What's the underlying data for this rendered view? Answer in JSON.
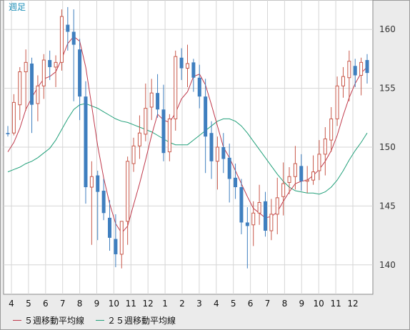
{
  "chart_data": {
    "type": "candlestick",
    "period_label": "週足",
    "ylim": [
      137.5,
      162.5
    ],
    "y_ticks": [
      140,
      145,
      150,
      155,
      160
    ],
    "x_tick_labels": [
      "4",
      "5",
      "6",
      "7",
      "8",
      "9",
      "10",
      "11",
      "12",
      "1",
      "2",
      "3",
      "4",
      "5",
      "6",
      "7",
      "8",
      "9",
      "10",
      "11",
      "12"
    ],
    "grid": true,
    "legend_position": "bottom-left",
    "colors": {
      "up": "#c8584a",
      "down": "#3f7fbf",
      "ma5": "#c0394b",
      "ma25": "#22a07a"
    },
    "series": [
      {
        "name": "５週移動平均線",
        "key": "ma5"
      },
      {
        "name": "２５週移動平均線",
        "key": "ma25"
      }
    ],
    "candles": [
      [
        151.2,
        151.8,
        150.9,
        151.1
      ],
      [
        151.2,
        154.5,
        151.0,
        153.8
      ],
      [
        153.6,
        156.8,
        152.3,
        156.4
      ],
      [
        156.4,
        158.3,
        153.1,
        157.2
      ],
      [
        157.1,
        157.6,
        151.2,
        153.6
      ],
      [
        153.7,
        156.1,
        152.2,
        155.2
      ],
      [
        155.2,
        157.9,
        154.1,
        157.4
      ],
      [
        157.4,
        158.2,
        155.7,
        156.8
      ],
      [
        156.8,
        157.8,
        155.1,
        157.2
      ],
      [
        157.2,
        161.7,
        156.5,
        161.1
      ],
      [
        160.4,
        161.9,
        158.2,
        159.8
      ],
      [
        159.8,
        161.7,
        153.9,
        158.7
      ],
      [
        158.3,
        159.2,
        152.3,
        154.3
      ],
      [
        154.3,
        155.6,
        145.2,
        146.6
      ],
      [
        146.6,
        148.8,
        141.7,
        147.5
      ],
      [
        147.6,
        148.0,
        142.1,
        146.2
      ],
      [
        146.3,
        147.3,
        143.8,
        144.4
      ],
      [
        144.0,
        145.5,
        141.2,
        142.3
      ],
      [
        142.2,
        144.3,
        139.8,
        140.9
      ],
      [
        140.9,
        143.7,
        139.7,
        143.7
      ],
      [
        143.7,
        149.2,
        141.7,
        148.8
      ],
      [
        148.6,
        150.8,
        147.9,
        150.1
      ],
      [
        150.1,
        152.7,
        149.0,
        151.2
      ],
      [
        151.1,
        155.4,
        150.5,
        153.3
      ],
      [
        153.4,
        155.8,
        152.3,
        154.6
      ],
      [
        154.6,
        156.2,
        152.5,
        153.2
      ],
      [
        153.2,
        155.3,
        148.8,
        149.5
      ],
      [
        149.6,
        152.8,
        148.8,
        152.4
      ],
      [
        152.4,
        158.2,
        151.4,
        157.7
      ],
      [
        157.6,
        158.4,
        155.7,
        156.7
      ],
      [
        156.7,
        158.7,
        155.1,
        157.1
      ],
      [
        157.2,
        157.5,
        154.7,
        155.9
      ],
      [
        155.9,
        157.0,
        153.3,
        154.3
      ],
      [
        154.3,
        155.8,
        147.8,
        150.9
      ],
      [
        151.2,
        152.2,
        147.3,
        148.8
      ],
      [
        148.8,
        150.9,
        146.4,
        150.0
      ],
      [
        150.0,
        151.2,
        147.8,
        149.0
      ],
      [
        149.1,
        150.3,
        145.3,
        147.3
      ],
      [
        147.4,
        148.6,
        145.6,
        146.6
      ],
      [
        146.6,
        147.3,
        142.6,
        143.6
      ],
      [
        143.6,
        144.9,
        139.7,
        143.3
      ],
      [
        143.4,
        145.4,
        141.6,
        144.4
      ],
      [
        144.4,
        146.8,
        143.4,
        145.3
      ],
      [
        145.4,
        146.2,
        142.4,
        142.9
      ],
      [
        142.9,
        145.6,
        142.1,
        144.3
      ],
      [
        144.3,
        147.4,
        142.6,
        145.7
      ],
      [
        145.8,
        148.7,
        144.2,
        146.9
      ],
      [
        147.0,
        148.3,
        146.0,
        147.5
      ],
      [
        147.5,
        150.1,
        146.4,
        148.6
      ],
      [
        148.4,
        149.4,
        146.3,
        147.1
      ],
      [
        147.1,
        148.4,
        146.1,
        147.2
      ],
      [
        147.2,
        149.3,
        146.8,
        147.9
      ],
      [
        148.0,
        150.6,
        147.2,
        149.4
      ],
      [
        149.4,
        151.7,
        147.6,
        150.7
      ],
      [
        150.6,
        153.4,
        149.6,
        152.4
      ],
      [
        152.4,
        156.0,
        151.8,
        155.2
      ],
      [
        155.2,
        156.8,
        154.2,
        156.0
      ],
      [
        155.9,
        158.2,
        153.9,
        157.3
      ],
      [
        156.9,
        157.5,
        155.1,
        156.1
      ],
      [
        156.1,
        157.6,
        154.4,
        157.2
      ],
      [
        157.4,
        157.9,
        155.4,
        156.3
      ]
    ],
    "ma5": [
      149.6,
      150.4,
      151.6,
      153.2,
      154.2,
      155.1,
      155.8,
      156.0,
      156.4,
      157.5,
      158.8,
      159.4,
      159.0,
      156.8,
      153.5,
      150.1,
      147.4,
      145.2,
      143.5,
      142.7,
      143.3,
      145.1,
      146.9,
      148.9,
      151.0,
      152.8,
      152.3,
      152.1,
      152.9,
      154.1,
      154.7,
      156.0,
      156.2,
      155.3,
      153.6,
      151.8,
      150.0,
      149.1,
      148.0,
      146.9,
      145.8,
      144.8,
      144.4,
      144.0,
      144.1,
      144.5,
      145.4,
      146.2,
      146.9,
      147.1,
      147.2,
      147.6,
      148.1,
      148.8,
      149.7,
      151.0,
      152.7,
      154.2,
      155.4,
      156.3,
      156.8
    ],
    "ma25": [
      147.9,
      148.1,
      148.3,
      148.6,
      148.8,
      149.1,
      149.5,
      149.9,
      150.6,
      151.5,
      152.4,
      153.2,
      153.6,
      153.7,
      153.5,
      153.3,
      153.0,
      152.7,
      152.4,
      152.2,
      152.1,
      151.9,
      151.7,
      151.5,
      151.3,
      151.0,
      150.7,
      150.4,
      150.2,
      150.2,
      150.2,
      150.6,
      151.0,
      151.4,
      151.8,
      152.2,
      152.4,
      152.4,
      152.2,
      151.8,
      151.2,
      150.5,
      149.8,
      149.1,
      148.4,
      147.7,
      147.1,
      146.6,
      146.3,
      146.2,
      146.1,
      146.1,
      146.0,
      146.2,
      146.6,
      147.2,
      148.0,
      148.9,
      149.7,
      150.4,
      151.2
    ]
  }
}
